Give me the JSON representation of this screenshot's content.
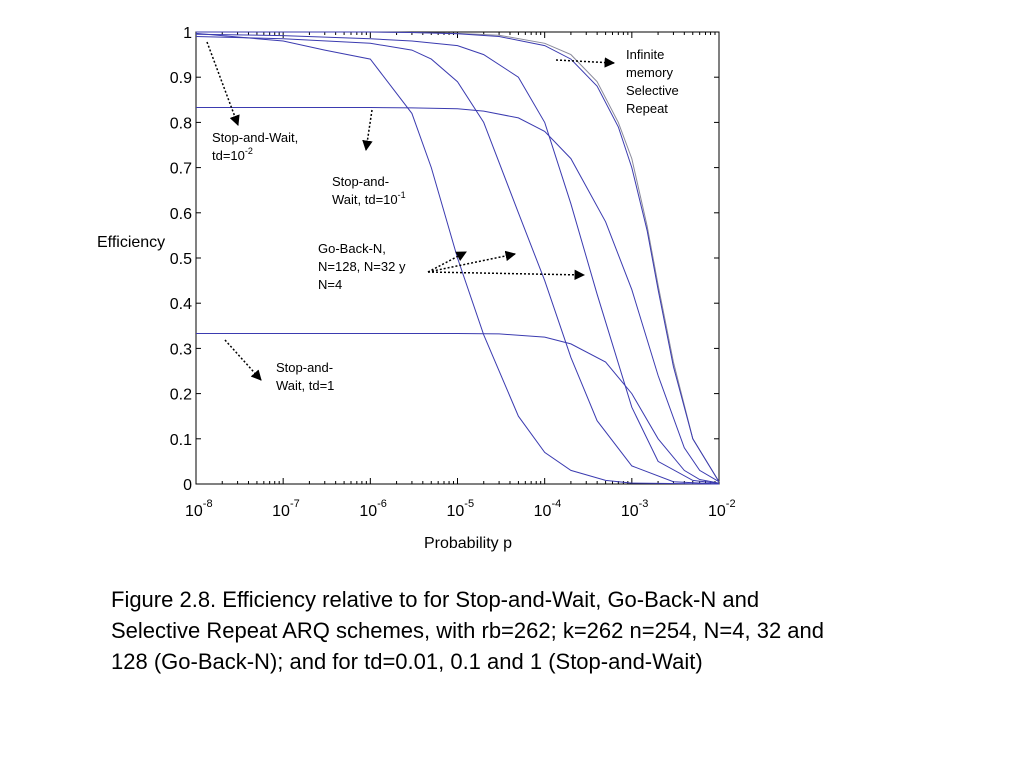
{
  "chart_data": {
    "type": "line",
    "xlabel": "Probability p",
    "ylabel": "Efficiency",
    "xscale": "log",
    "xlim": [
      1e-08,
      0.01
    ],
    "ylim": [
      0,
      1
    ],
    "grid": false,
    "y_ticks": [
      {
        "value": 0,
        "label": "0"
      },
      {
        "value": 0.1,
        "label": "0.1"
      },
      {
        "value": 0.2,
        "label": "0.2"
      },
      {
        "value": 0.3,
        "label": "0.3"
      },
      {
        "value": 0.4,
        "label": "0.4"
      },
      {
        "value": 0.5,
        "label": "0.5"
      },
      {
        "value": 0.6,
        "label": "0.6"
      },
      {
        "value": 0.7,
        "label": "0.7"
      },
      {
        "value": 0.8,
        "label": "0.8"
      },
      {
        "value": 0.9,
        "label": "0.9"
      },
      {
        "value": 1,
        "label": "1"
      }
    ],
    "x_ticks": [
      {
        "value": 1e-08,
        "base": "10",
        "exp": "-8"
      },
      {
        "value": 1e-07,
        "base": "10",
        "exp": "-7"
      },
      {
        "value": 1e-06,
        "base": "10",
        "exp": "-6"
      },
      {
        "value": 1e-05,
        "base": "10",
        "exp": "-5"
      },
      {
        "value": 0.0001,
        "base": "10",
        "exp": "-4"
      },
      {
        "value": 0.001,
        "base": "10",
        "exp": "-3"
      },
      {
        "value": 0.01,
        "base": "10",
        "exp": "-2"
      }
    ],
    "series_color": "#3b3bb0",
    "series_color_alt": "#8a8a9a",
    "series": [
      {
        "x": [
          1e-08,
          1e-07,
          1e-06,
          3e-06,
          1e-05,
          3e-05,
          0.0001,
          0.0002,
          0.0004,
          0.0007,
          0.001,
          0.0015,
          0.002,
          0.003,
          0.005,
          0.01
        ],
        "y": [
          1,
          1,
          1,
          0.999,
          0.997,
          0.993,
          0.975,
          0.95,
          0.89,
          0.8,
          0.72,
          0.57,
          0.44,
          0.27,
          0.1,
          0.005
        ]
      },
      {
        "x": [
          1e-08,
          1e-07,
          1e-06,
          3e-06,
          1e-05,
          3e-05,
          0.0001,
          0.0002,
          0.0004,
          0.0007,
          0.001,
          0.0015,
          0.002,
          0.003,
          0.005,
          0.01
        ],
        "y": [
          1,
          1,
          1,
          0.999,
          0.996,
          0.99,
          0.97,
          0.94,
          0.88,
          0.79,
          0.7,
          0.56,
          0.43,
          0.26,
          0.1,
          0.005
        ]
      },
      {
        "x": [
          1e-08,
          1e-07,
          1e-06,
          3e-06,
          1e-05,
          2e-05,
          5e-05,
          0.0001,
          0.0002,
          0.0004,
          0.001,
          0.002,
          0.005,
          0.01
        ],
        "y": [
          0.995,
          0.992,
          0.985,
          0.98,
          0.97,
          0.95,
          0.9,
          0.8,
          0.62,
          0.42,
          0.17,
          0.05,
          0.008,
          0.001
        ]
      },
      {
        "x": [
          1e-08,
          1e-07,
          1e-06,
          3e-06,
          5e-06,
          1e-05,
          2e-05,
          5e-05,
          0.0001,
          0.0002,
          0.0004,
          0.001,
          0.003,
          0.01
        ],
        "y": [
          0.99,
          0.985,
          0.975,
          0.96,
          0.94,
          0.89,
          0.8,
          0.6,
          0.45,
          0.28,
          0.14,
          0.04,
          0.005,
          0
        ]
      },
      {
        "x": [
          1e-08,
          1e-07,
          3e-07,
          1e-06,
          3e-06,
          5e-06,
          1e-05,
          2e-05,
          5e-05,
          0.0001,
          0.0002,
          0.0005,
          0.001,
          0.01
        ],
        "y": [
          0.997,
          0.98,
          0.96,
          0.94,
          0.82,
          0.7,
          0.5,
          0.33,
          0.15,
          0.07,
          0.03,
          0.008,
          0.002,
          0
        ]
      },
      {
        "x": [
          1e-08,
          1e-07,
          1e-06,
          3e-06,
          1e-05,
          2e-05,
          5e-05,
          0.0001,
          0.0002,
          0.0005,
          0.001,
          0.002,
          0.004,
          0.006,
          0.01
        ],
        "y": [
          0.833,
          0.833,
          0.833,
          0.832,
          0.83,
          0.825,
          0.81,
          0.78,
          0.72,
          0.58,
          0.43,
          0.24,
          0.08,
          0.03,
          0.005
        ]
      },
      {
        "x": [
          1e-08,
          1e-07,
          1e-06,
          1e-05,
          3e-05,
          0.0001,
          0.0002,
          0.0005,
          0.001,
          0.002,
          0.004,
          0.006,
          0.01
        ],
        "y": [
          0.333,
          0.333,
          0.333,
          0.333,
          0.332,
          0.325,
          0.31,
          0.27,
          0.2,
          0.1,
          0.03,
          0.01,
          0.002
        ]
      }
    ],
    "annotations": [
      {
        "lines": [
          "Infinite",
          "memory",
          "Selective",
          "Repeat"
        ]
      },
      {
        "lines": [
          "Stop-and-Wait,",
          "td=10"
        ],
        "sup": "-2"
      },
      {
        "lines": [
          "Stop-and-",
          "Wait, td=10"
        ],
        "sup": "-1"
      },
      {
        "lines": [
          "Go-Back-N,",
          "N=128, N=32 y",
          "N=4"
        ]
      },
      {
        "lines": [
          "Stop-and-",
          "Wait, td=1"
        ]
      }
    ]
  },
  "caption": "Figure 2.8. Efficiency relative to  for Stop-and-Wait, Go-Back-N and Selective Repeat ARQ schemes, with rb=262; k=262 n=254, N=4, 32 and 128 (Go-Back-N); and for td=0.01, 0.1 and 1 (Stop-and-Wait)"
}
